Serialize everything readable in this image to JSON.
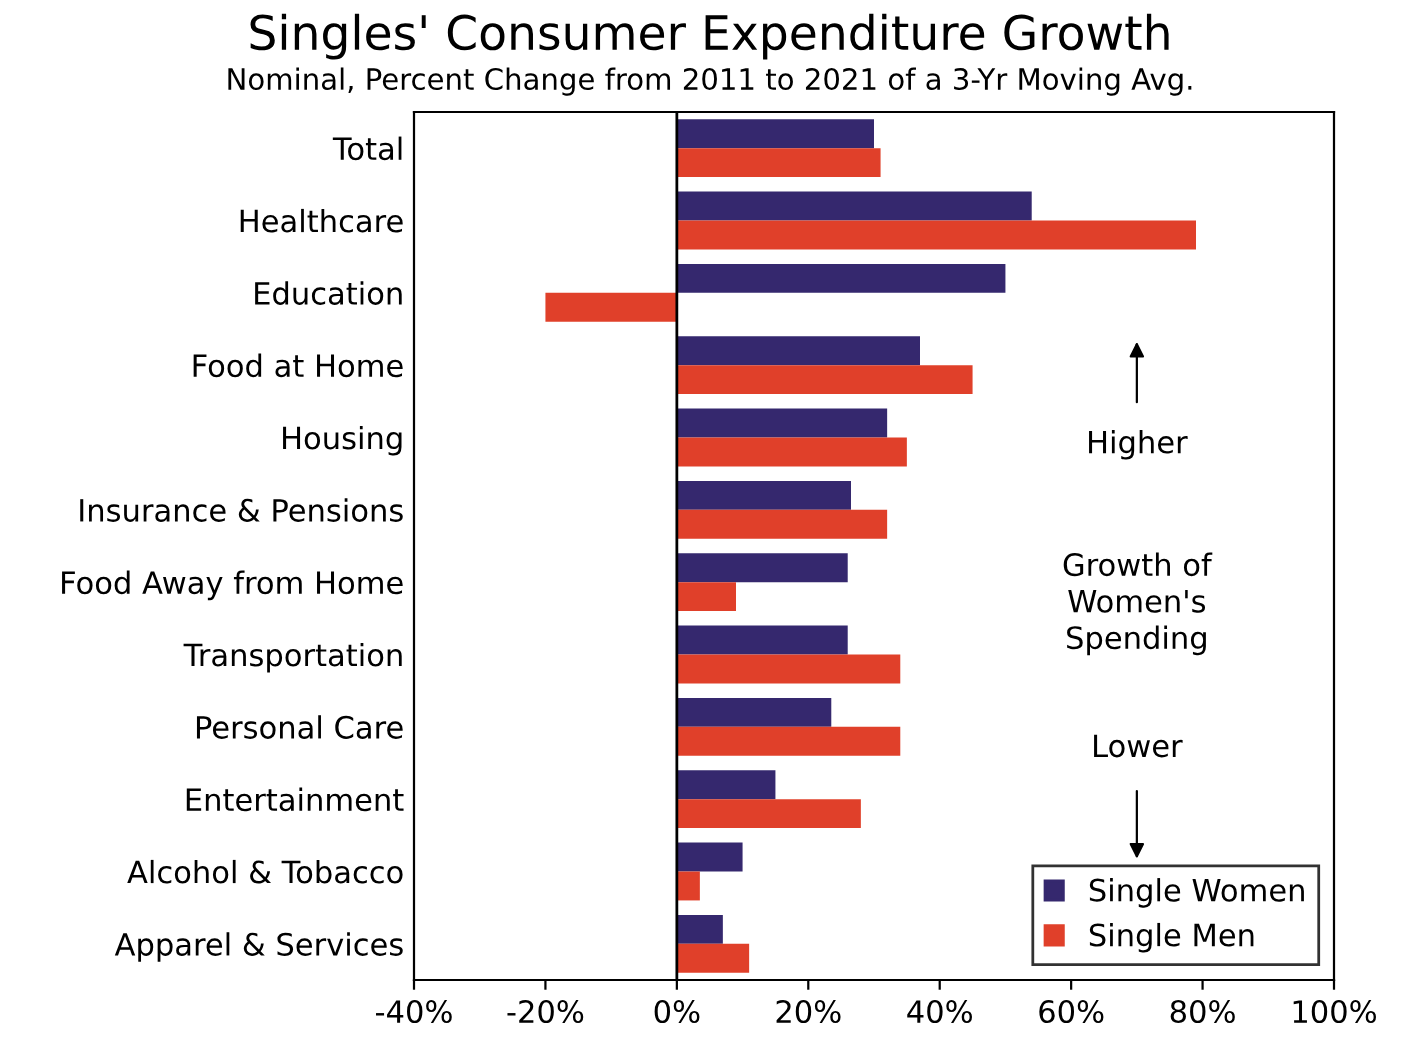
{
  "chart_data": {
    "type": "bar",
    "orientation": "horizontal",
    "title": "Singles' Consumer Expenditure Growth",
    "subtitle": "Nominal, Percent Change from 2011 to 2021 of a 3-Yr Moving Avg.",
    "categories": [
      "Total",
      "Healthcare",
      "Education",
      "Food at Home",
      "Housing",
      "Insurance & Pensions",
      "Food Away from Home",
      "Transportation",
      "Personal Care",
      "Entertainment",
      "Alcohol & Tobacco",
      "Apparel & Services"
    ],
    "series": [
      {
        "name": "Single Women",
        "color": "#35286e",
        "values": [
          30,
          54,
          50,
          37,
          32,
          26.5,
          26,
          26,
          23.5,
          15,
          10,
          7
        ]
      },
      {
        "name": "Single Men",
        "color": "#e0402a",
        "values": [
          31,
          79,
          -20,
          45,
          35,
          32,
          9,
          34,
          34,
          28,
          3.5,
          11
        ]
      }
    ],
    "xlim": [
      -40,
      100
    ],
    "xticks": [
      {
        "value": -40,
        "label": "-40%"
      },
      {
        "value": -20,
        "label": "-20%"
      },
      {
        "value": 0,
        "label": "0%"
      },
      {
        "value": 20,
        "label": "20%"
      },
      {
        "value": 40,
        "label": "40%"
      },
      {
        "value": 60,
        "label": "60%"
      },
      {
        "value": 80,
        "label": "80%"
      },
      {
        "value": 100,
        "label": "100%"
      }
    ],
    "annotations": [
      "Higher",
      "Growth of\nWomen's\nSpending",
      "Lower"
    ],
    "ref_lines": [
      {
        "axis": "x",
        "value": 0,
        "color": "#000000"
      }
    ],
    "legend": "bottom right"
  }
}
